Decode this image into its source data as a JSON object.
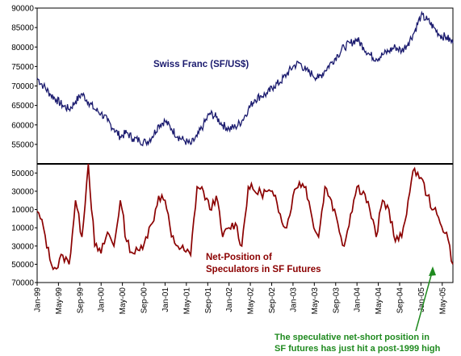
{
  "chart_data": [
    {
      "type": "line",
      "name": "Swiss Franc (SF/US$)",
      "ylim": [
        50000,
        90000
      ],
      "yticks": [
        55000,
        60000,
        65000,
        70000,
        75000,
        80000,
        85000,
        90000
      ],
      "ytick_labels": [
        "55000",
        "60000",
        "65000",
        "70000",
        "75000",
        "80000",
        "85000",
        "90000"
      ],
      "colors": {
        "line": "#1a1a6e",
        "label": "#1a1a6e"
      },
      "series": [
        {
          "name": "Swiss Franc (SF/US$)",
          "x": [
            1999.0,
            1999.1,
            1999.2,
            1999.3,
            1999.4,
            1999.5,
            1999.6,
            1999.7,
            1999.8,
            1999.9,
            2000.0,
            2000.1,
            2000.2,
            2000.3,
            2000.4,
            2000.5,
            2000.6,
            2000.7,
            2000.8,
            2000.9,
            2001.0,
            2001.1,
            2001.2,
            2001.3,
            2001.4,
            2001.5,
            2001.6,
            2001.7,
            2001.8,
            2001.9,
            2002.0,
            2002.1,
            2002.2,
            2002.3,
            2002.4,
            2002.5,
            2002.6,
            2002.7,
            2002.8,
            2002.9,
            2003.0,
            2003.1,
            2003.2,
            2003.3,
            2003.4,
            2003.5,
            2003.6,
            2003.7,
            2003.8,
            2003.9,
            2004.0,
            2004.1,
            2004.2,
            2004.3,
            2004.4,
            2004.5,
            2004.6,
            2004.7,
            2004.8,
            2004.9,
            2005.0,
            2005.1,
            2005.2,
            2005.3,
            2005.4,
            2005.5
          ],
          "y": [
            72000,
            70000,
            68000,
            66500,
            65000,
            64000,
            66000,
            68000,
            66000,
            64000,
            63000,
            61000,
            59000,
            57000,
            58000,
            56500,
            56000,
            55500,
            57000,
            60000,
            61000,
            59000,
            57000,
            56000,
            55000,
            57000,
            60000,
            63000,
            62000,
            60000,
            59000,
            59500,
            61000,
            64000,
            66500,
            67500,
            68000,
            70000,
            71000,
            73000,
            75000,
            76000,
            74000,
            73000,
            72000,
            74000,
            76000,
            78000,
            80000,
            81000,
            82000,
            80000,
            78000,
            77000,
            78000,
            79000,
            80000,
            79000,
            81000,
            84000,
            88000,
            87000,
            85000,
            83000,
            82500,
            81000
          ]
        }
      ]
    },
    {
      "type": "line",
      "name": "Net-Position of Speculators in SF Futures",
      "ylim": [
        -70000,
        60000
      ],
      "yticks": [
        -70000,
        -50000,
        -30000,
        -10000,
        10000,
        30000,
        50000
      ],
      "ytick_labels": [
        "70000",
        "50000",
        "30000",
        "10000",
        "10000",
        "30000",
        "50000"
      ],
      "colors": {
        "line": "#8b0000",
        "label": "#8b0000"
      },
      "series": [
        {
          "name": "Net-Position of Speculators in SF Futures",
          "x": [
            1999.0,
            1999.1,
            1999.2,
            1999.3,
            1999.4,
            1999.5,
            1999.6,
            1999.7,
            1999.8,
            1999.9,
            2000.0,
            2000.1,
            2000.2,
            2000.3,
            2000.4,
            2000.5,
            2000.6,
            2000.7,
            2000.8,
            2000.9,
            2001.0,
            2001.1,
            2001.2,
            2001.3,
            2001.4,
            2001.5,
            2001.6,
            2001.7,
            2001.8,
            2001.9,
            2002.0,
            2002.1,
            2002.2,
            2002.3,
            2002.4,
            2002.5,
            2002.6,
            2002.7,
            2002.8,
            2002.9,
            2003.0,
            2003.1,
            2003.2,
            2003.3,
            2003.4,
            2003.5,
            2003.6,
            2003.7,
            2003.8,
            2003.9,
            2004.0,
            2004.1,
            2004.2,
            2004.3,
            2004.4,
            2004.5,
            2004.6,
            2004.7,
            2004.8,
            2004.9,
            2005.0,
            2005.1,
            2005.2,
            2005.3,
            2005.4,
            2005.5
          ],
          "y": [
            8000,
            -10000,
            -45000,
            -55000,
            -40000,
            -50000,
            20000,
            -20000,
            60000,
            -30000,
            -38000,
            -15000,
            -30000,
            20000,
            -25000,
            -38000,
            -35000,
            -20000,
            -5000,
            25000,
            20000,
            -20000,
            -30000,
            -35000,
            -40000,
            35000,
            30000,
            10000,
            25000,
            -20000,
            -10000,
            -5000,
            -30000,
            35000,
            30000,
            28000,
            30000,
            25000,
            5000,
            -10000,
            25000,
            40000,
            35000,
            0,
            -20000,
            35000,
            20000,
            -5000,
            -30000,
            5000,
            35000,
            30000,
            10000,
            -20000,
            20000,
            10000,
            -25000,
            -20000,
            20000,
            55000,
            45000,
            25000,
            10000,
            -5000,
            -15000,
            -50000
          ]
        }
      ]
    }
  ],
  "labels": {
    "top_series": "Swiss Franc (SF/US$)",
    "bottom_series_line1": "Net-Position of",
    "bottom_series_line2": "Speculators in SF Futures",
    "note_line1": "The speculative net-short position in",
    "note_line2": "SF futures has just hit a post-1999 high"
  },
  "x_axis": {
    "start": 1999.0,
    "end": 2005.5,
    "ticks": [
      1999.0,
      1999.333,
      1999.667,
      2000.0,
      2000.333,
      2000.667,
      2001.0,
      2001.333,
      2001.667,
      2002.0,
      2002.333,
      2002.667,
      2003.0,
      2003.333,
      2003.667,
      2004.0,
      2004.333,
      2004.667,
      2005.0,
      2005.333
    ],
    "tick_labels": [
      "Jan-99",
      "May-99",
      "Sep-99",
      "Jan-00",
      "May-00",
      "Sep-00",
      "Jan-01",
      "May-01",
      "Sep-01",
      "Jan-02",
      "May-02",
      "Sep-02",
      "Jan-03",
      "May-03",
      "Sep-03",
      "Jan-04",
      "May-04",
      "Sep-04",
      "Jan-05",
      "May-05"
    ]
  },
  "colors": {
    "note": "#1f8a1f",
    "arrow": "#1f8a1f",
    "divider": "#000000",
    "frame": "#000000"
  }
}
